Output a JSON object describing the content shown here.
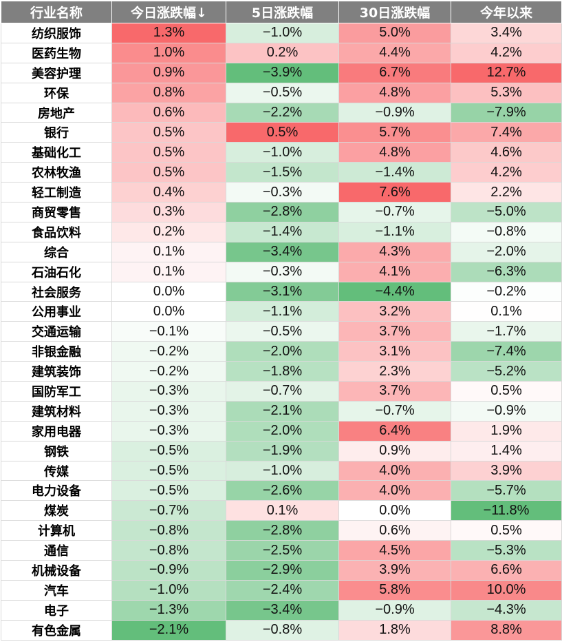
{
  "colors": {
    "header_bg": "#808080",
    "header_text": "#ffffff",
    "positive_strong": "#f8696b",
    "negative_strong": "#63be7b",
    "neutral": "#ffffff"
  },
  "table": {
    "headers": [
      "行业名称",
      "今日涨跌幅↓",
      "5日涨跌幅",
      "30日涨跌幅",
      "今年以来"
    ],
    "rows": [
      [
        "纺织服饰",
        "1.3%",
        "−1.0%",
        "5.0%",
        "3.4%"
      ],
      [
        "医药生物",
        "1.0%",
        "0.2%",
        "4.4%",
        "4.2%"
      ],
      [
        "美容护理",
        "0.9%",
        "−3.9%",
        "6.7%",
        "12.7%"
      ],
      [
        "环保",
        "0.8%",
        "−0.5%",
        "4.8%",
        "5.3%"
      ],
      [
        "房地产",
        "0.6%",
        "−2.2%",
        "−0.9%",
        "−7.9%"
      ],
      [
        "银行",
        "0.5%",
        "0.5%",
        "5.7%",
        "7.4%"
      ],
      [
        "基础化工",
        "0.5%",
        "−1.0%",
        "4.8%",
        "4.6%"
      ],
      [
        "农林牧渔",
        "0.5%",
        "−1.5%",
        "−1.4%",
        "4.2%"
      ],
      [
        "轻工制造",
        "0.4%",
        "−0.3%",
        "7.6%",
        "2.2%"
      ],
      [
        "商贸零售",
        "0.3%",
        "−2.8%",
        "−0.7%",
        "−5.0%"
      ],
      [
        "食品饮料",
        "0.2%",
        "−1.4%",
        "−1.1%",
        "−0.8%"
      ],
      [
        "综合",
        "0.1%",
        "−3.4%",
        "4.3%",
        "−2.0%"
      ],
      [
        "石油石化",
        "0.1%",
        "−0.3%",
        "4.1%",
        "−6.3%"
      ],
      [
        "社会服务",
        "0.0%",
        "−3.1%",
        "−4.4%",
        "−0.2%"
      ],
      [
        "公用事业",
        "0.0%",
        "−1.1%",
        "3.2%",
        "0.1%"
      ],
      [
        "交通运输",
        "−0.1%",
        "−0.5%",
        "3.7%",
        "−1.7%"
      ],
      [
        "非银金融",
        "−0.2%",
        "−2.0%",
        "3.1%",
        "−7.4%"
      ],
      [
        "建筑装饰",
        "−0.2%",
        "−1.8%",
        "2.3%",
        "−5.2%"
      ],
      [
        "国防军工",
        "−0.3%",
        "−0.7%",
        "3.7%",
        "0.5%"
      ],
      [
        "建筑材料",
        "−0.3%",
        "−2.1%",
        "−0.7%",
        "−0.9%"
      ],
      [
        "家用电器",
        "−0.3%",
        "−2.0%",
        "6.4%",
        "1.9%"
      ],
      [
        "钢铁",
        "−0.5%",
        "−1.9%",
        "0.9%",
        "1.4%"
      ],
      [
        "传媒",
        "−0.5%",
        "−1.0%",
        "4.0%",
        "3.9%"
      ],
      [
        "电力设备",
        "−0.5%",
        "−2.6%",
        "4.0%",
        "−5.7%"
      ],
      [
        "煤炭",
        "−0.7%",
        "0.1%",
        "0.0%",
        "−11.8%"
      ],
      [
        "计算机",
        "−0.8%",
        "−2.8%",
        "0.6%",
        "0.5%"
      ],
      [
        "通信",
        "−0.8%",
        "−2.5%",
        "4.5%",
        "−5.3%"
      ],
      [
        "机械设备",
        "−0.9%",
        "−2.9%",
        "3.9%",
        "6.6%"
      ],
      [
        "汽车",
        "−1.0%",
        "−2.4%",
        "5.8%",
        "10.0%"
      ],
      [
        "电子",
        "−1.3%",
        "−3.4%",
        "−0.9%",
        "−4.3%"
      ],
      [
        "有色金属",
        "−2.1%",
        "−0.8%",
        "1.8%",
        "8.8%"
      ]
    ]
  }
}
